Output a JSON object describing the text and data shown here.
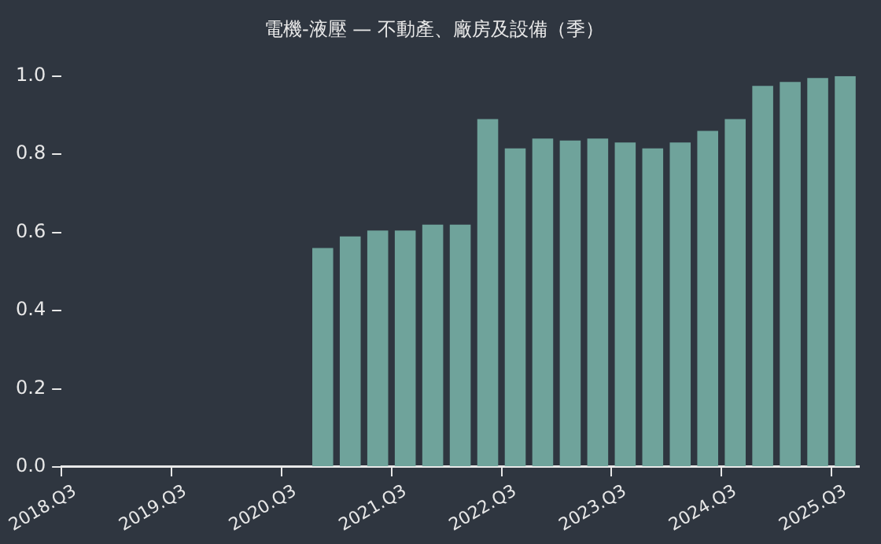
{
  "chart_data": {
    "type": "bar",
    "title": "電機-液壓 — 不動產、廠房及設備（季）",
    "categories": [
      "2018.Q3",
      null,
      null,
      null,
      "2019.Q3",
      null,
      null,
      null,
      "2020.Q3",
      null,
      null,
      null,
      "2021.Q3",
      null,
      null,
      null,
      "2022.Q3",
      null,
      null,
      null,
      "2023.Q3",
      null,
      null,
      null,
      "2024.Q3",
      null,
      null,
      null,
      "2025.Q3"
    ],
    "values": [
      null,
      null,
      null,
      null,
      null,
      null,
      null,
      null,
      null,
      0.56,
      0.59,
      0.605,
      0.605,
      0.62,
      0.62,
      0.89,
      0.815,
      0.84,
      0.835,
      0.84,
      0.83,
      0.815,
      0.83,
      0.86,
      0.89,
      0.975,
      0.985,
      0.995,
      1.0
    ],
    "color": "#6fa39b",
    "ylim": [
      0,
      1.0
    ],
    "yticks": [
      {
        "value": 0,
        "label": "0.0"
      },
      {
        "value": 0.2,
        "label": "0.2"
      },
      {
        "value": 0.4,
        "label": "0.4"
      },
      {
        "value": 0.6,
        "label": "0.6"
      },
      {
        "value": 0.8,
        "label": "0.8"
      },
      {
        "value": 1.0,
        "label": "1.0"
      }
    ],
    "grid": false,
    "legend": false
  }
}
